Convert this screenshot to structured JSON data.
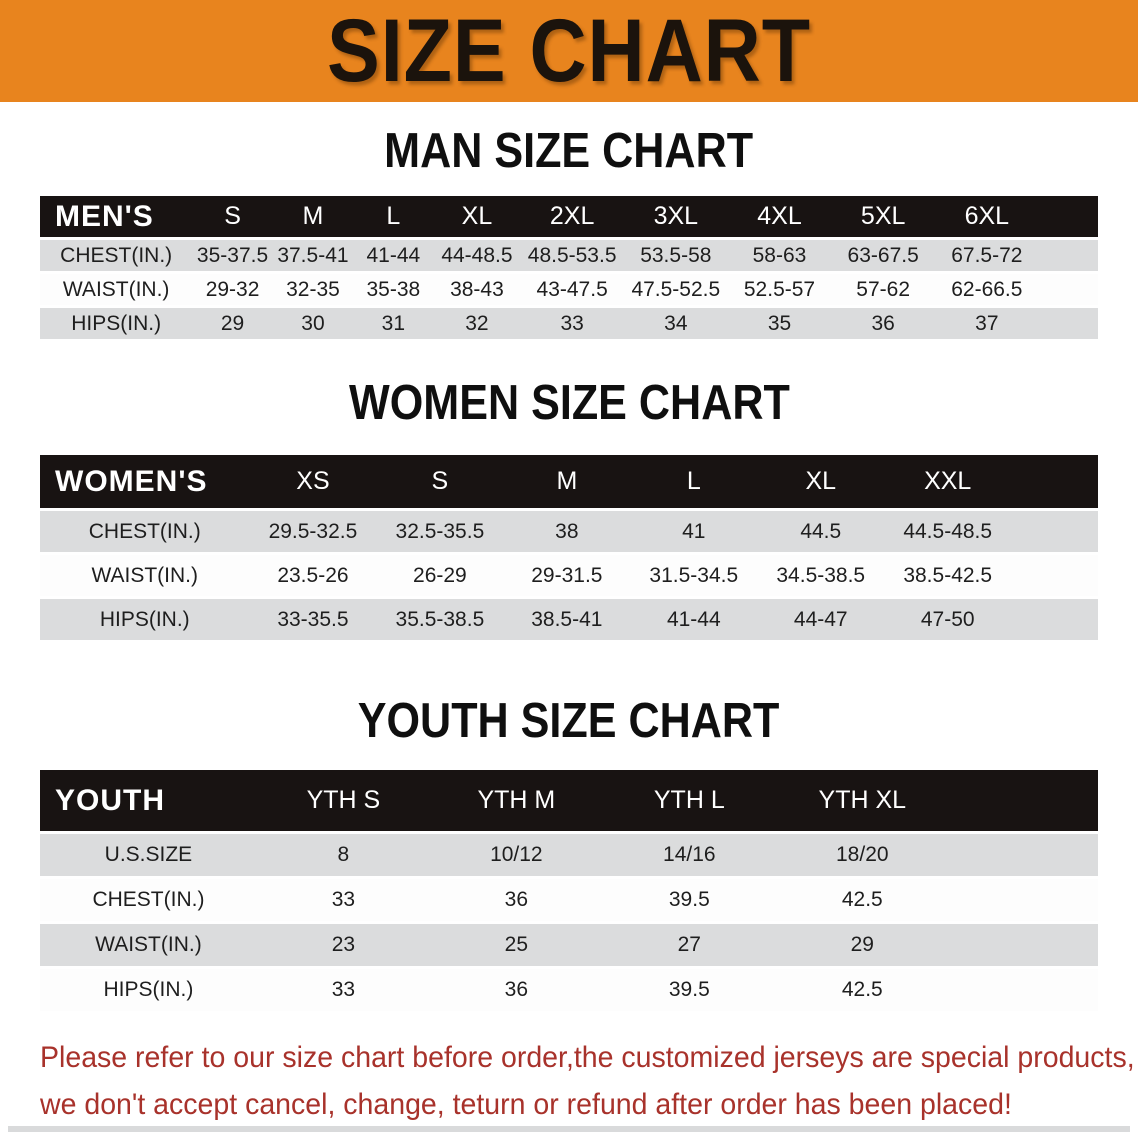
{
  "banner": {
    "title": "SIZE CHART"
  },
  "sections": {
    "men": {
      "heading": "MAN SIZE CHART",
      "corner_label": "MEN'S",
      "columns": [
        "S",
        "M",
        "L",
        "XL",
        "2XL",
        "3XL",
        "4XL",
        "5XL",
        "6XL"
      ],
      "rows": [
        {
          "label": "CHEST(IN.)",
          "values": [
            "35-37.5",
            "37.5-41",
            "41-44",
            "44-48.5",
            "48.5-53.5",
            "53.5-58",
            "58-63",
            "63-67.5",
            "67.5-72"
          ]
        },
        {
          "label": "WAIST(IN.)",
          "values": [
            "29-32",
            "32-35",
            "35-38",
            "38-43",
            "43-47.5",
            "47.5-52.5",
            "52.5-57",
            "57-62",
            "62-66.5"
          ]
        },
        {
          "label": "HIPS(IN.)",
          "values": [
            "29",
            "30",
            "31",
            "32",
            "33",
            "34",
            "35",
            "36",
            "37"
          ]
        }
      ]
    },
    "women": {
      "heading": "WOMEN SIZE CHART",
      "corner_label": "WOMEN'S",
      "columns": [
        "XS",
        "S",
        "M",
        "L",
        "XL",
        "XXL"
      ],
      "rows": [
        {
          "label": "CHEST(IN.)",
          "values": [
            "29.5-32.5",
            "32.5-35.5",
            "38",
            "41",
            "44.5",
            "44.5-48.5"
          ]
        },
        {
          "label": "WAIST(IN.)",
          "values": [
            "23.5-26",
            "26-29",
            "29-31.5",
            "31.5-34.5",
            "34.5-38.5",
            "38.5-42.5"
          ]
        },
        {
          "label": "HIPS(IN.)",
          "values": [
            "33-35.5",
            "35.5-38.5",
            "38.5-41",
            "41-44",
            "44-47",
            "47-50"
          ]
        }
      ]
    },
    "youth": {
      "heading": "YOUTH SIZE CHART",
      "corner_label": "YOUTH",
      "columns": [
        "YTH S",
        "YTH M",
        "YTH L",
        "YTH XL"
      ],
      "rows": [
        {
          "label": "U.S.SIZE",
          "values": [
            "8",
            "10/12",
            "14/16",
            "18/20"
          ]
        },
        {
          "label": "CHEST(IN.)",
          "values": [
            "33",
            "36",
            "39.5",
            "42.5"
          ]
        },
        {
          "label": "WAIST(IN.)",
          "values": [
            "23",
            "25",
            "27",
            "29"
          ]
        },
        {
          "label": "HIPS(IN.)",
          "values": [
            "33",
            "36",
            "39.5",
            "42.5"
          ]
        }
      ]
    }
  },
  "disclaimer": {
    "line1": "Please refer to our size chart before order,the customized jerseys are special products,",
    "line2": "we don't accept cancel, change, teturn or refund after order has been placed!"
  },
  "colors": {
    "banner_bg": "#E8841E",
    "header_bar": "#181312",
    "row_alt": "#dbdcdd",
    "disclaimer_text": "#A8322B"
  }
}
